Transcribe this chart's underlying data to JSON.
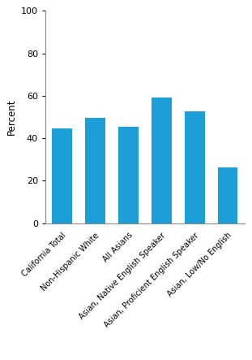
{
  "categories": [
    "California Total",
    "Non-Hispanic White",
    "All Asians",
    "Asian, Native English Speaker",
    "Asian, Proficient English Speaker",
    "Asian, Low/No English"
  ],
  "values": [
    44.8,
    49.6,
    45.3,
    59.1,
    52.5,
    26.2
  ],
  "bar_color": "#1c9ed6",
  "ylabel": "Percent",
  "ylim": [
    0,
    100
  ],
  "yticks": [
    0,
    20,
    40,
    60,
    80,
    100
  ],
  "ylabel_fontsize": 8.5,
  "tick_fontsize": 8,
  "xtick_fontsize": 7.0,
  "background_color": "#ffffff",
  "bar_width": 0.6,
  "label_rotation": 45
}
